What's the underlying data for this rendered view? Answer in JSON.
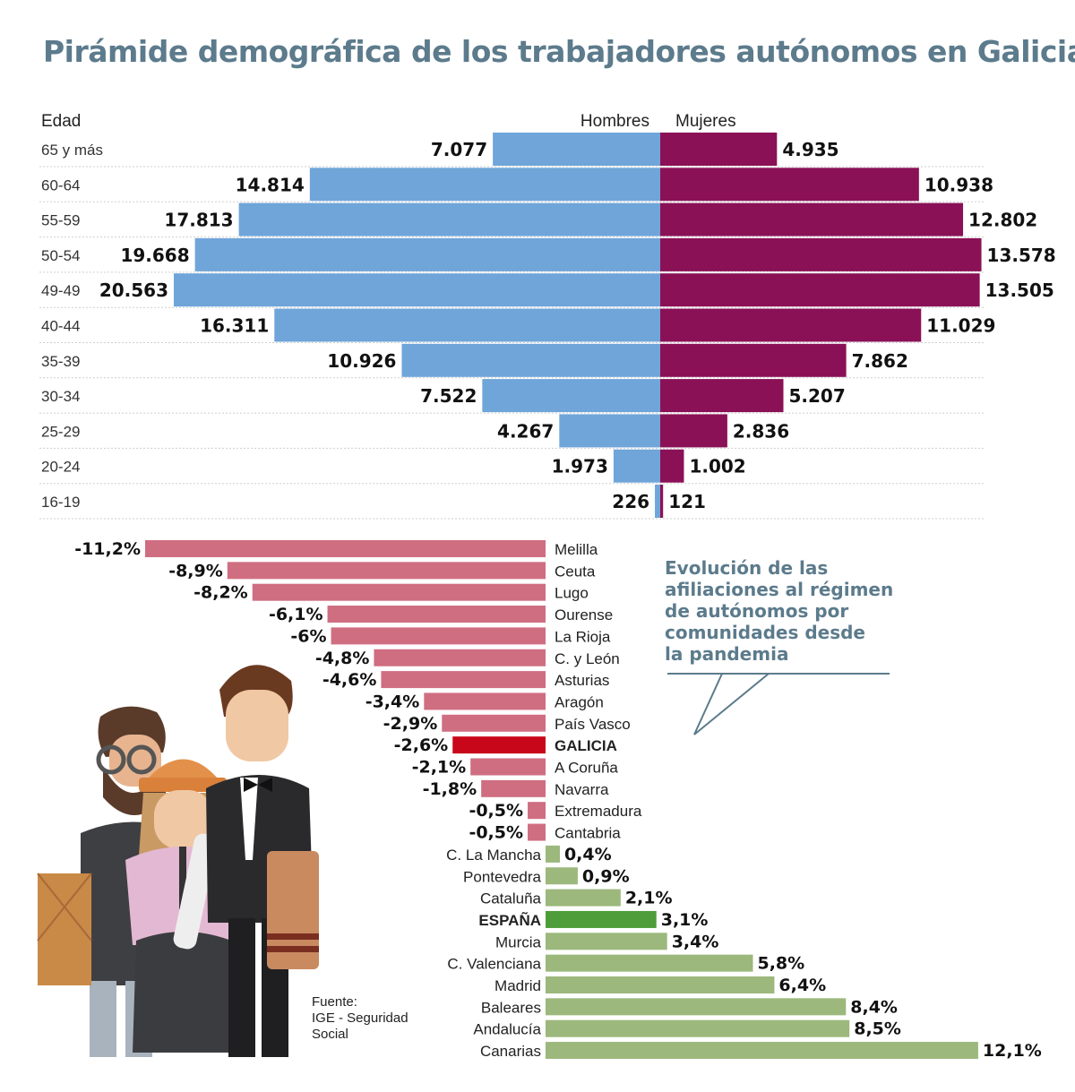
{
  "title": "Pirámide demográfica de los trabajadores autónomos en Galicia",
  "callout": {
    "lines": [
      "Evolución de las",
      "afiliaciones al régimen",
      "de autónomos por",
      "comunidades desde",
      "la pandemia"
    ]
  },
  "source": {
    "lines": [
      "Fuente:",
      "IGE - Seguridad",
      "Social"
    ]
  },
  "colors": {
    "hombres": "#6fa5d9",
    "mujeres": "#8a1156",
    "negative": "#cf6e81",
    "negative_highlight": "#c8081a",
    "positive": "#9cb87c",
    "positive_highlight": "#4e9d3a",
    "title": "#5c7b8c"
  },
  "chart_data": [
    {
      "type": "bar",
      "subtype": "population-pyramid",
      "title": "Pirámide demográfica de los trabajadores autónomos en Galicia",
      "category_label": "Edad",
      "categories": [
        "65 y más",
        "60-64",
        "55-59",
        "50-54",
        "49-49",
        "40-44",
        "35-39",
        "30-34",
        "25-29",
        "20-24",
        "16-19"
      ],
      "series": [
        {
          "name": "Hombres",
          "values": [
            7077,
            14814,
            17813,
            19668,
            20563,
            16311,
            10926,
            7522,
            4267,
            1973,
            226
          ],
          "labels": [
            "7.077",
            "14.814",
            "17.813",
            "19.668",
            "20.563",
            "16.311",
            "10.926",
            "7.522",
            "4.267",
            "1.973",
            "226"
          ]
        },
        {
          "name": "Mujeres",
          "values": [
            4935,
            10938,
            12802,
            13578,
            13505,
            11029,
            7862,
            5207,
            2836,
            1002,
            121
          ],
          "labels": [
            "4.935",
            "10.938",
            "12.802",
            "13.578",
            "13.505",
            "11.029",
            "7.862",
            "5.207",
            "2.836",
            "1.002",
            "121"
          ]
        }
      ]
    },
    {
      "type": "bar",
      "orientation": "horizontal",
      "title": "Evolución de las afiliaciones al régimen de autónomos por comunidades desde la pandemia",
      "unit": "%",
      "categories": [
        "Melilla",
        "Ceuta",
        "Lugo",
        "Ourense",
        "La Rioja",
        "C. y León",
        "Asturias",
        "Aragón",
        "País Vasco",
        "GALICIA",
        "A Coruña",
        "Navarra",
        "Extremadura",
        "Cantabria",
        "C. La Mancha",
        "Pontevedra",
        "Cataluña",
        "ESPAÑA",
        "Murcia",
        "C. Valenciana",
        "Madrid",
        "Baleares",
        "Andalucía",
        "Canarias"
      ],
      "values": [
        -11.2,
        -8.9,
        -8.2,
        -6.1,
        -6,
        -4.8,
        -4.6,
        -3.4,
        -2.9,
        -2.6,
        -2.1,
        -1.8,
        -0.5,
        -0.5,
        0.4,
        0.9,
        2.1,
        3.1,
        3.4,
        5.8,
        6.4,
        8.4,
        8.5,
        12.1
      ],
      "labels": [
        "-11,2%",
        "-8,9%",
        "-8,2%",
        "-6,1%",
        "-6%",
        "-4,8%",
        "-4,6%",
        "-3,4%",
        "-2,9%",
        "-2,6%",
        "-2,1%",
        "-1,8%",
        "-0,5%",
        "-0,5%",
        "0,4%",
        "0,9%",
        "2,1%",
        "3,1%",
        "3,4%",
        "5,8%",
        "6,4%",
        "8,4%",
        "8,5%",
        "12,1%"
      ],
      "highlighted": [
        "GALICIA",
        "ESPAÑA"
      ]
    }
  ]
}
